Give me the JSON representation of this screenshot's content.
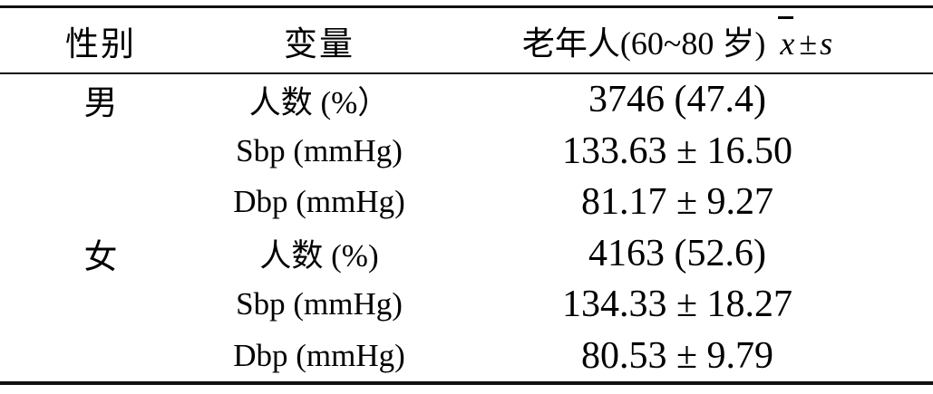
{
  "table": {
    "header": {
      "col1": "性别",
      "col2": "变量",
      "col3_prefix": "老年人(60~80 岁)",
      "col3_mean_symbol": "x",
      "col3_pm": "±",
      "col3_s": "s"
    },
    "rows": [
      {
        "gender": "男",
        "variable": "人数 (%）",
        "value": "3746 (47.4)"
      },
      {
        "gender": "",
        "variable": "Sbp (mmHg)",
        "value": "133.63 ± 16.50"
      },
      {
        "gender": "",
        "variable": "Dbp (mmHg)",
        "value": "81.17 ± 9.27"
      },
      {
        "gender": "女",
        "variable": "人数 (%)",
        "value": "4163 (52.6)"
      },
      {
        "gender": "",
        "variable": "Sbp (mmHg)",
        "value": "134.33 ± 18.27"
      },
      {
        "gender": "",
        "variable": "Dbp (mmHg)",
        "value": "80.53 ± 9.79"
      }
    ],
    "colors": {
      "text": "#000000",
      "background": "#ffffff",
      "rule": "#111111"
    }
  }
}
